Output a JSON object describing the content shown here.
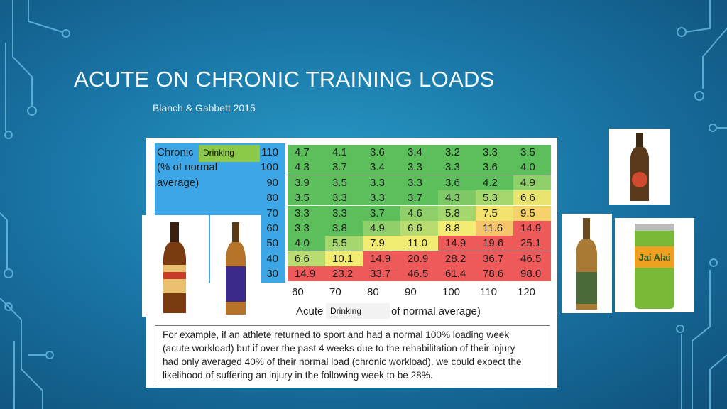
{
  "header": {
    "title": "ACUTE ON CHRONIC TRAINING LOADS",
    "subtitle": "Blanch & Gabbett 2015"
  },
  "table": {
    "row_axis_label": [
      "Chronic",
      "(% of normal",
      "average)"
    ],
    "column_axis_label": [
      "Acute",
      "of normal average)"
    ],
    "overlay_labels": [
      "Drinking",
      "Drinking"
    ],
    "columns": [
      "60",
      "70",
      "80",
      "90",
      "100",
      "110",
      "120"
    ],
    "rows": [
      {
        "label": "110",
        "cells": [
          "4.7",
          "4.1",
          "3.6",
          "3.4",
          "3.2",
          "3.3",
          "3.5"
        ],
        "colors": [
          "#5cbf5c",
          "#5cbf5c",
          "#5cbf5c",
          "#5cbf5c",
          "#5cbf5c",
          "#5cbf5c",
          "#5cbf5c"
        ]
      },
      {
        "label": "100",
        "cells": [
          "4.3",
          "3.7",
          "3.4",
          "3.3",
          "3.3",
          "3.6",
          "4.0"
        ],
        "colors": [
          "#5cbf5c",
          "#5cbf5c",
          "#5cbf5c",
          "#5cbf5c",
          "#5cbf5c",
          "#5cbf5c",
          "#5cbf5c"
        ]
      },
      {
        "label": "90",
        "cells": [
          "3.9",
          "3.5",
          "3.3",
          "3.3",
          "3.6",
          "4.2",
          "4.9"
        ],
        "colors": [
          "#5cbf5c",
          "#5cbf5c",
          "#5cbf5c",
          "#5cbf5c",
          "#5cbf5c",
          "#5cbf5c",
          "#8fd06a"
        ]
      },
      {
        "label": "80",
        "cells": [
          "3.5",
          "3.3",
          "3.3",
          "3.7",
          "4.3",
          "5.3",
          "6.6"
        ],
        "colors": [
          "#5cbf5c",
          "#5cbf5c",
          "#5cbf5c",
          "#5cbf5c",
          "#7ec865",
          "#a4d86e",
          "#e9e46e"
        ]
      },
      {
        "label": "70",
        "cells": [
          "3.3",
          "3.3",
          "3.7",
          "4.6",
          "5.8",
          "7.5",
          "9.5"
        ],
        "colors": [
          "#5cbf5c",
          "#5cbf5c",
          "#5cbf5c",
          "#8fd06a",
          "#a4d86e",
          "#f2e26e",
          "#f5d26a"
        ]
      },
      {
        "label": "60",
        "cells": [
          "3.3",
          "3.8",
          "4.9",
          "6.6",
          "8.8",
          "11.6",
          "14.9"
        ],
        "colors": [
          "#5cbf5c",
          "#5cbf5c",
          "#8fd06a",
          "#b8dc70",
          "#f2ec72",
          "#f5c36a",
          "#ee5a5a"
        ]
      },
      {
        "label": "50",
        "cells": [
          "4.0",
          "5.5",
          "7.9",
          "11.0",
          "14.9",
          "19.6",
          "25.1"
        ],
        "colors": [
          "#5cbf5c",
          "#a4d86e",
          "#f2ec72",
          "#f2ec72",
          "#ee5a5a",
          "#ee5a5a",
          "#ee5a5a"
        ]
      },
      {
        "label": "40",
        "cells": [
          "6.6",
          "10.1",
          "14.9",
          "20.9",
          "28.2",
          "36.7",
          "46.5"
        ],
        "colors": [
          "#b8dc70",
          "#f2ec72",
          "#ee5a5a",
          "#ee5a5a",
          "#ee5a5a",
          "#ee5a5a",
          "#ee5a5a"
        ]
      },
      {
        "label": "30",
        "cells": [
          "14.9",
          "23.2",
          "33.7",
          "46.5",
          "61.4",
          "78.6",
          "98.0"
        ],
        "colors": [
          "#ee5a5a",
          "#ee5a5a",
          "#ee5a5a",
          "#ee5a5a",
          "#ee5a5a",
          "#ee5a5a",
          "#ee5a5a"
        ]
      }
    ],
    "caption": [
      "For example, if an athlete returned to sport and had a normal 100% loading week",
      "(acute workload) but if over the past 4 weeks due to the rehabilitation of their injury",
      "had only averaged 40% of their normal load (chronic workload), we could expect the",
      "likelihood of suffering an injury in the following week to be 28%."
    ]
  },
  "images": {
    "can_label": "Jai Alai"
  }
}
